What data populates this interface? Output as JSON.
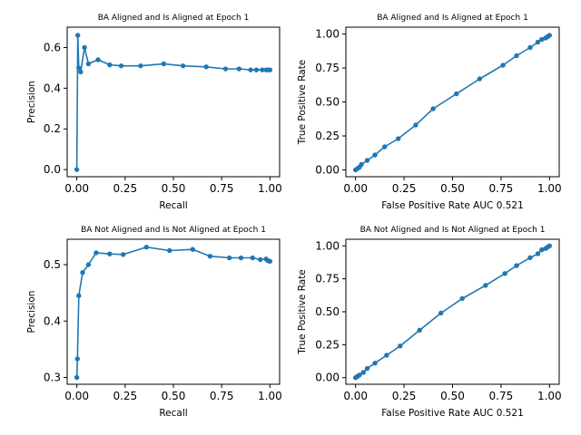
{
  "chart_data": [
    {
      "type": "line",
      "title": "BA Aligned and Is Aligned at Epoch 1",
      "xlabel": "Recall",
      "ylabel": "Precision",
      "xlim": [
        -0.05,
        1.05
      ],
      "ylim": [
        -0.035,
        0.7
      ],
      "xticks": [
        0.0,
        0.25,
        0.5,
        0.75,
        1.0
      ],
      "xtick_labels": [
        "0.00",
        "0.25",
        "0.50",
        "0.75",
        "1.00"
      ],
      "yticks": [
        0.0,
        0.2,
        0.4,
        0.6
      ],
      "ytick_labels": [
        "0.0",
        "0.2",
        "0.4",
        "0.6"
      ],
      "grid": false,
      "color": "#1f77b4",
      "series": [
        {
          "x": [
            0.0,
            0.005,
            0.01,
            0.02,
            0.04,
            0.06,
            0.11,
            0.17,
            0.23,
            0.33,
            0.45,
            0.55,
            0.67,
            0.77,
            0.84,
            0.9,
            0.93,
            0.96,
            0.98,
            0.99,
            1.0
          ],
          "y": [
            0.0,
            0.66,
            0.5,
            0.48,
            0.6,
            0.52,
            0.54,
            0.515,
            0.51,
            0.51,
            0.52,
            0.51,
            0.505,
            0.495,
            0.495,
            0.49,
            0.49,
            0.49,
            0.49,
            0.49,
            0.49
          ]
        }
      ]
    },
    {
      "type": "line",
      "title": "BA Aligned and Is Aligned at Epoch 1",
      "xlabel": "False Positive Rate AUC 0.521",
      "ylabel": "True Positive Rate",
      "xlim": [
        -0.05,
        1.05
      ],
      "ylim": [
        -0.05,
        1.05
      ],
      "xticks": [
        0.0,
        0.25,
        0.5,
        0.75,
        1.0
      ],
      "xtick_labels": [
        "0.00",
        "0.25",
        "0.50",
        "0.75",
        "1.00"
      ],
      "yticks": [
        0.0,
        0.25,
        0.5,
        0.75,
        1.0
      ],
      "ytick_labels": [
        "0.00",
        "0.25",
        "0.50",
        "0.75",
        "1.00"
      ],
      "grid": false,
      "color": "#1f77b4",
      "series": [
        {
          "x": [
            0.0,
            0.01,
            0.02,
            0.03,
            0.06,
            0.1,
            0.15,
            0.22,
            0.31,
            0.4,
            0.52,
            0.64,
            0.76,
            0.83,
            0.9,
            0.94,
            0.96,
            0.98,
            0.99,
            1.0
          ],
          "y": [
            0.0,
            0.01,
            0.02,
            0.04,
            0.07,
            0.11,
            0.17,
            0.23,
            0.33,
            0.45,
            0.56,
            0.67,
            0.77,
            0.84,
            0.9,
            0.94,
            0.96,
            0.97,
            0.98,
            0.99
          ]
        }
      ]
    },
    {
      "type": "line",
      "title": "BA Not Aligned and Is Not Aligned at Epoch 1",
      "xlabel": "Recall",
      "ylabel": "Precision",
      "xlim": [
        -0.05,
        1.05
      ],
      "ylim": [
        0.288,
        0.545
      ],
      "xticks": [
        0.0,
        0.25,
        0.5,
        0.75,
        1.0
      ],
      "xtick_labels": [
        "0.00",
        "0.25",
        "0.50",
        "0.75",
        "1.00"
      ],
      "yticks": [
        0.3,
        0.4,
        0.5
      ],
      "ytick_labels": [
        "0.3",
        "0.4",
        "0.5"
      ],
      "grid": false,
      "color": "#1f77b4",
      "series": [
        {
          "x": [
            0.0,
            0.003,
            0.01,
            0.03,
            0.06,
            0.1,
            0.17,
            0.24,
            0.36,
            0.48,
            0.6,
            0.69,
            0.79,
            0.85,
            0.91,
            0.95,
            0.98,
            0.99,
            1.0
          ],
          "y": [
            0.3,
            0.333,
            0.445,
            0.486,
            0.5,
            0.521,
            0.519,
            0.518,
            0.531,
            0.525,
            0.527,
            0.515,
            0.512,
            0.512,
            0.512,
            0.509,
            0.51,
            0.507,
            0.506
          ]
        }
      ]
    },
    {
      "type": "line",
      "title": "BA Not Aligned and Is Not Aligned at Epoch 1",
      "xlabel": "False Positive Rate AUC 0.521",
      "ylabel": "True Positive Rate",
      "xlim": [
        -0.05,
        1.05
      ],
      "ylim": [
        -0.05,
        1.05
      ],
      "xticks": [
        0.0,
        0.25,
        0.5,
        0.75,
        1.0
      ],
      "xtick_labels": [
        "0.00",
        "0.25",
        "0.50",
        "0.75",
        "1.00"
      ],
      "yticks": [
        0.0,
        0.25,
        0.5,
        0.75,
        1.0
      ],
      "ytick_labels": [
        "0.00",
        "0.25",
        "0.50",
        "0.75",
        "1.00"
      ],
      "grid": false,
      "color": "#1f77b4",
      "series": [
        {
          "x": [
            0.0,
            0.01,
            0.02,
            0.04,
            0.06,
            0.1,
            0.16,
            0.23,
            0.33,
            0.44,
            0.55,
            0.67,
            0.77,
            0.83,
            0.9,
            0.94,
            0.96,
            0.98,
            0.99,
            1.0
          ],
          "y": [
            0.0,
            0.01,
            0.02,
            0.04,
            0.07,
            0.11,
            0.17,
            0.24,
            0.36,
            0.49,
            0.6,
            0.7,
            0.79,
            0.85,
            0.91,
            0.94,
            0.97,
            0.98,
            0.99,
            1.0
          ]
        }
      ]
    }
  ]
}
